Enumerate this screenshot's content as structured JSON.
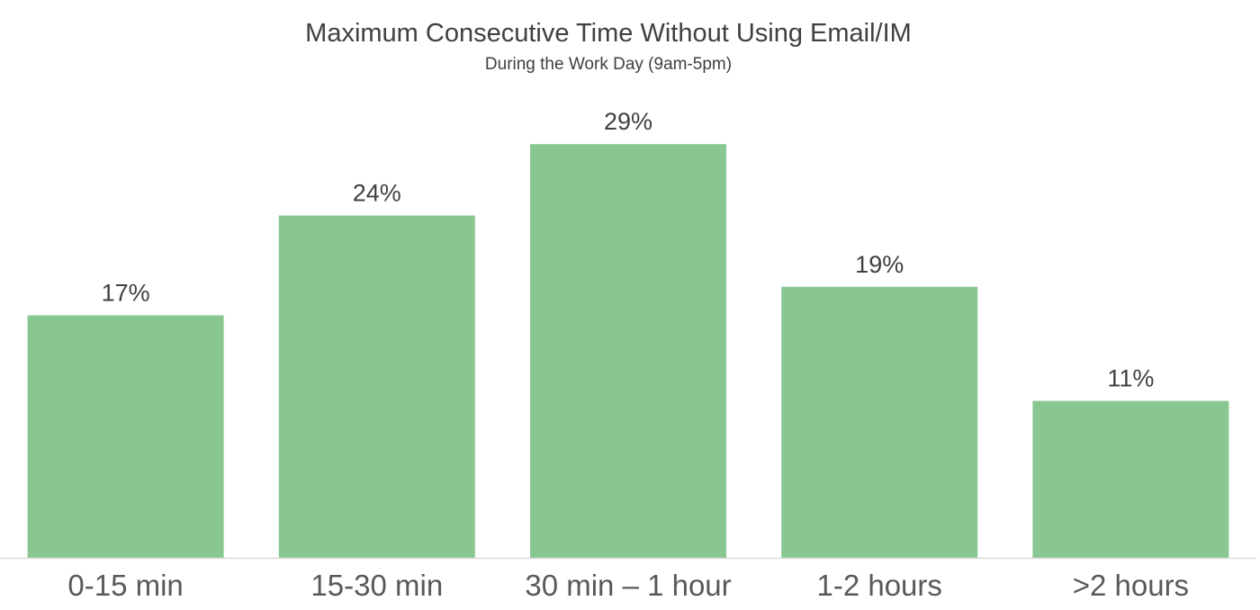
{
  "chart_data": {
    "type": "bar",
    "title": "Maximum Consecutive Time Without Using Email/IM",
    "subtitle": "During the Work Day (9am-5pm)",
    "categories": [
      "0-15 min",
      "15-30 min",
      "30 min – 1 hour",
      "1-2 hours",
      ">2 hours"
    ],
    "values": [
      17,
      24,
      29,
      19,
      11
    ],
    "data_labels": [
      "17%",
      "24%",
      "29%",
      "19%",
      "11%"
    ],
    "unit": "%",
    "ylim": [
      0,
      32.8
    ],
    "grid": false,
    "legend": "none",
    "bar_color": "#88c791",
    "axis_color": "#d9d9d9"
  }
}
